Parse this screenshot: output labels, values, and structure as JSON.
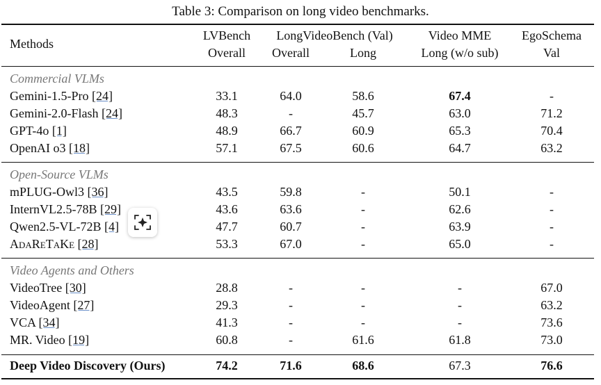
{
  "caption": "Table 3: Comparison on long video benchmarks.",
  "header": {
    "methods": "Methods",
    "lvbench": [
      "LVBench",
      "Overall"
    ],
    "lvb_group": "LongVideoBench (Val)",
    "lvb_overall": "Overall",
    "lvb_long": "Long",
    "vmme": [
      "Video MME",
      "Long (w/o sub)"
    ],
    "ego": [
      "EgoSchema",
      "Val"
    ]
  },
  "groups": [
    {
      "label": "Commercial VLMs",
      "rows": [
        {
          "name": "Gemini-1.5-Pro ",
          "ref": "[24]",
          "vals": [
            "33.1",
            "64.0",
            "58.6",
            "67.4",
            "-"
          ],
          "bold": [
            false,
            false,
            false,
            true,
            false
          ]
        },
        {
          "name": "Gemini-2.0-Flash ",
          "ref": "[24]",
          "vals": [
            "48.3",
            "-",
            "45.7",
            "63.0",
            "71.2"
          ],
          "bold": [
            false,
            false,
            false,
            false,
            false
          ]
        },
        {
          "name": "GPT-4o ",
          "ref": "[1]",
          "vals": [
            "48.9",
            "66.7",
            "60.9",
            "65.3",
            "70.4"
          ],
          "bold": [
            false,
            false,
            false,
            false,
            false
          ]
        },
        {
          "name": "OpenAI o3 ",
          "ref": "[18]",
          "vals": [
            "57.1",
            "67.5",
            "60.6",
            "64.7",
            "63.2"
          ],
          "bold": [
            false,
            false,
            false,
            false,
            false
          ]
        }
      ]
    },
    {
      "label": "Open-Source VLMs",
      "rows": [
        {
          "name": "mPLUG-Owl3 ",
          "ref": "[36]",
          "vals": [
            "43.5",
            "59.8",
            "-",
            "50.1",
            "-"
          ],
          "bold": [
            false,
            false,
            false,
            false,
            false
          ]
        },
        {
          "name": "InternVL2.5-78B ",
          "ref": "[29]",
          "vals": [
            "43.6",
            "63.6",
            "-",
            "62.6",
            "-"
          ],
          "bold": [
            false,
            false,
            false,
            false,
            false
          ]
        },
        {
          "name": "Qwen2.5-VL-72B ",
          "ref": "[4]",
          "vals": [
            "47.7",
            "60.7",
            "-",
            "63.9",
            "-"
          ],
          "bold": [
            false,
            false,
            false,
            false,
            false
          ]
        },
        {
          "name": "AdaReTaKe ",
          "ref": "[28]",
          "vals": [
            "53.3",
            "67.0",
            "-",
            "65.0",
            "-"
          ],
          "bold": [
            false,
            false,
            false,
            false,
            false
          ],
          "smallcaps": true
        }
      ]
    },
    {
      "label": "Video Agents and Others",
      "rows": [
        {
          "name": "VideoTree ",
          "ref": "[30]",
          "vals": [
            "28.8",
            "-",
            "-",
            "-",
            "67.0"
          ],
          "bold": [
            false,
            false,
            false,
            false,
            false
          ]
        },
        {
          "name": "VideoAgent ",
          "ref": "[27]",
          "vals": [
            "29.3",
            "-",
            "-",
            "-",
            "63.2"
          ],
          "bold": [
            false,
            false,
            false,
            false,
            false
          ]
        },
        {
          "name": "VCA ",
          "ref": "[34]",
          "vals": [
            "41.3",
            "-",
            "-",
            "-",
            "73.6"
          ],
          "bold": [
            false,
            false,
            false,
            false,
            false
          ]
        },
        {
          "name": "MR. Video ",
          "ref": "[19]",
          "vals": [
            "60.8",
            "-",
            "61.6",
            "61.8",
            "73.0"
          ],
          "bold": [
            false,
            false,
            false,
            false,
            false
          ]
        }
      ]
    }
  ],
  "ours": {
    "name": "Deep Video Discovery (Ours)",
    "vals": [
      "74.2",
      "71.6",
      "68.6",
      "67.3",
      "76.6"
    ],
    "bold": [
      true,
      true,
      true,
      false,
      true
    ]
  },
  "overlay_icon": "sparkle-scan-icon"
}
